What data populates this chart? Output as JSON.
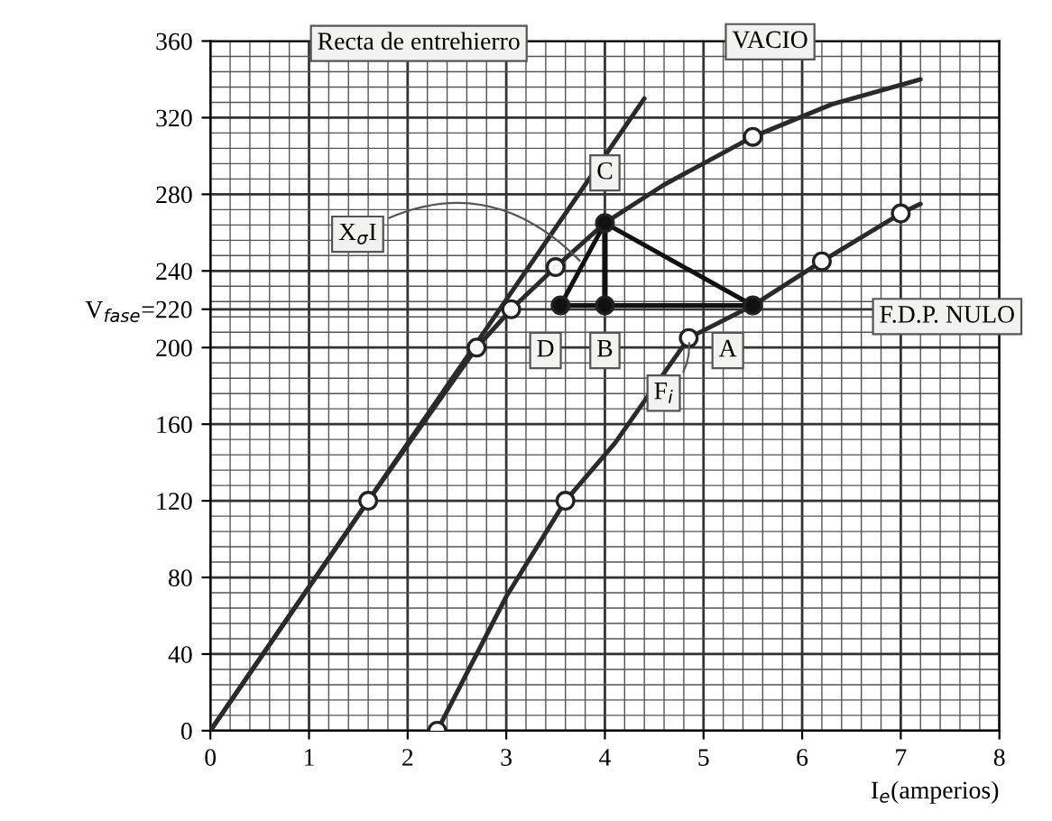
{
  "chart_data": {
    "type": "line",
    "xlabel": "I$_{e}$(amperios)",
    "xlim": [
      0,
      8
    ],
    "xticks": [
      0,
      1,
      2,
      3,
      4,
      5,
      6,
      7,
      8
    ],
    "ylim": [
      0,
      360
    ],
    "yticks": [
      0,
      40,
      80,
      120,
      160,
      200,
      {
        "value": 220,
        "label": "V$_{fase}$=220"
      },
      240,
      280,
      320,
      360
    ],
    "grid": true,
    "line_style": "solid",
    "marker": "none",
    "series": [
      {
        "name": "Recta de entrehierro",
        "color": "#2a2a2a",
        "x": [
          0,
          4.4
        ],
        "values": [
          0,
          330
        ]
      },
      {
        "name": "VACIO",
        "color": "#2a2a2a",
        "x": [
          0,
          1.6,
          2.7,
          3.05,
          3.5,
          4.0,
          4.6,
          5.5,
          6.3,
          7.2
        ],
        "values": [
          0,
          120,
          200,
          220,
          242,
          265,
          285,
          310,
          327,
          340
        ]
      },
      {
        "name": "F.D.P. NULO",
        "color": "#2a2a2a",
        "x": [
          2.3,
          3.0,
          3.6,
          4.1,
          4.85,
          5.5,
          6.2,
          7.0,
          7.2
        ],
        "values": [
          0,
          70,
          120,
          150,
          205,
          222,
          245,
          270,
          275
        ]
      },
      {
        "color": "#111111",
        "x": [
          3.55,
          4.0
        ],
        "values": [
          222,
          265
        ]
      },
      {
        "color": "#111111",
        "x": [
          4.0,
          5.5
        ],
        "values": [
          265,
          222
        ]
      },
      {
        "color": "#111111",
        "x": [
          3.55,
          5.5
        ],
        "values": [
          222,
          222
        ]
      },
      {
        "type": "scatter",
        "marker": "circle",
        "color": "#ffffff",
        "x": [
          1.6,
          2.7,
          3.05,
          3.5,
          5.5,
          2.3,
          3.6,
          4.85,
          6.2,
          7.0
        ],
        "values": [
          120,
          200,
          220,
          242,
          310,
          0,
          120,
          205,
          245,
          270
        ]
      },
      {
        "type": "scatter",
        "marker": "circle",
        "color": "#111111",
        "x": [
          3.55,
          4.0,
          5.5,
          4.0
        ],
        "values": [
          222,
          222,
          222,
          265
        ],
        "errors": [
          null,
          [
            222,
            265
          ],
          null,
          null
        ]
      }
    ],
    "annotations": [
      {
        "text": "C",
        "x": 4.0,
        "y": 265
      },
      {
        "text": "D",
        "x": 3.55,
        "y": 222
      },
      {
        "text": "B",
        "x": 4.0,
        "y": 222
      },
      {
        "text": "A",
        "x": 5.5,
        "y": 222
      },
      {
        "text": "X$_{σ}$I",
        "x": 3.78,
        "y": 243.5
      },
      {
        "text": "F$_{i}$",
        "x": 4.85,
        "y": 205
      }
    ]
  }
}
